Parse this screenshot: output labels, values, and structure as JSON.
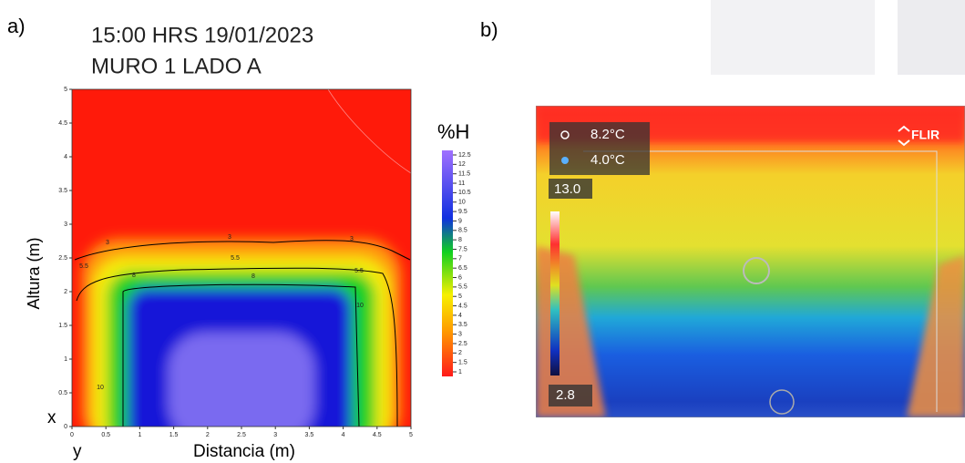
{
  "panel_a": {
    "label": "a)",
    "title_lines": [
      "15:00 HRS 19/01/2023",
      "MURO 1 LADO A"
    ],
    "y_label": "Altura (m)",
    "x_label": "Distancia (m)",
    "x_axis_name": "x",
    "y_axis_name": "y",
    "x_ticks": [
      0,
      0.5,
      1,
      1.5,
      2,
      2.5,
      3,
      3.5,
      4,
      4.5,
      5
    ],
    "y_ticks": [
      0,
      0.5,
      1,
      1.5,
      2,
      2.5,
      3,
      3.5,
      4,
      4.5,
      5
    ],
    "colorbar_title": "%H",
    "colorbar_ticks": [
      1,
      1.5,
      2,
      2.5,
      3,
      3.5,
      4,
      4.5,
      5,
      5.5,
      6,
      6.5,
      7,
      7.5,
      8,
      8.5,
      9,
      9.5,
      10,
      10.5,
      11,
      11.5,
      12,
      12.5
    ],
    "contour_labels": [
      "3",
      "3",
      "3",
      "5.5",
      "5.5",
      "5.5",
      "8",
      "8",
      "10",
      "10"
    ]
  },
  "panel_b": {
    "label": "b)",
    "spot_temperature": "8.2°C",
    "min_temperature": "4.0°C",
    "scale_max": "13.0",
    "scale_min": "2.8",
    "brand": "FLIR"
  }
}
